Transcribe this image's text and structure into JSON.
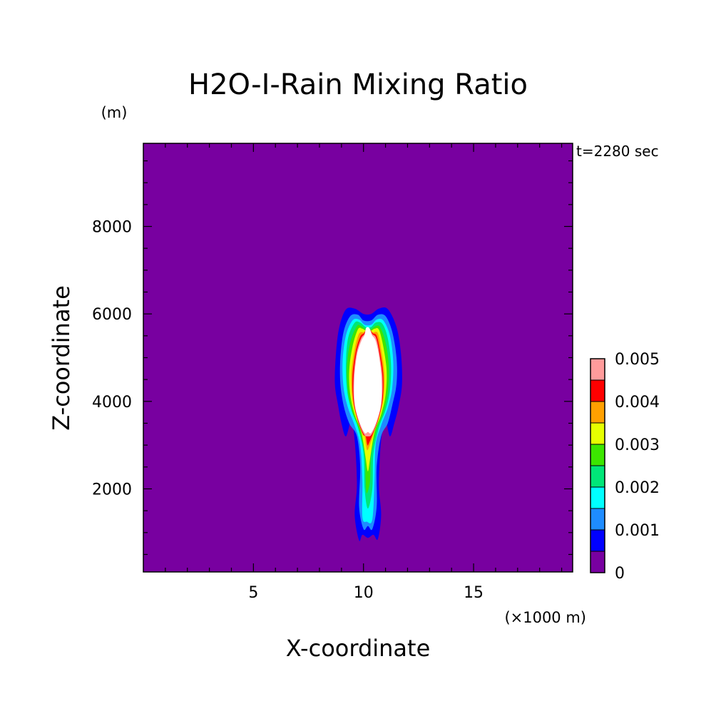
{
  "chart_data": {
    "type": "heatmap",
    "title": "H2O-I-Rain Mixing Ratio",
    "y_unit": "(m)",
    "time_label": "t=2280 sec",
    "xlabel": "X-coordinate",
    "x_unit": "(×1000 m)",
    "ylabel": "Z-coordinate",
    "xlim": [
      0,
      19.5
    ],
    "ylim": [
      100,
      9900
    ],
    "x_ticks": [
      {
        "value": 5,
        "label": "5"
      },
      {
        "value": 10,
        "label": "10"
      },
      {
        "value": 15,
        "label": "15"
      }
    ],
    "y_ticks": [
      {
        "value": 2000,
        "label": "2000"
      },
      {
        "value": 4000,
        "label": "4000"
      },
      {
        "value": 6000,
        "label": "6000"
      },
      {
        "value": 8000,
        "label": "8000"
      }
    ],
    "background_color": "#7800a0",
    "max_color": "#ffffff",
    "colorbar": {
      "levels": [
        0,
        0.0005,
        0.001,
        0.0015,
        0.002,
        0.0025,
        0.003,
        0.0035,
        0.004,
        0.0045,
        0.005
      ],
      "colors": [
        "#7800a0",
        "#0000ff",
        "#1e8cff",
        "#00ffff",
        "#00e678",
        "#3ce600",
        "#e6ff00",
        "#ffa000",
        "#ff0000",
        "#ff9b9b"
      ],
      "labels": [
        {
          "value": 0,
          "label": "0"
        },
        {
          "value": 0.001,
          "label": "0.001"
        },
        {
          "value": 0.002,
          "label": "0.002"
        },
        {
          "value": 0.003,
          "label": "0.003"
        },
        {
          "value": 0.004,
          "label": "0.004"
        },
        {
          "value": 0.005,
          "label": "0.005"
        }
      ]
    },
    "contours": [
      {
        "level": 0.0005,
        "color": "#0000ff",
        "points": [
          [
            9.2,
            6100
          ],
          [
            9.6,
            6120
          ],
          [
            10.0,
            6000
          ],
          [
            10.35,
            6000
          ],
          [
            10.7,
            6120
          ],
          [
            11.1,
            6110
          ],
          [
            11.5,
            5700
          ],
          [
            11.7,
            5100
          ],
          [
            11.75,
            4400
          ],
          [
            11.6,
            3900
          ],
          [
            11.4,
            3500
          ],
          [
            11.2,
            3200
          ],
          [
            11.0,
            3550
          ],
          [
            10.8,
            3100
          ],
          [
            10.7,
            2100
          ],
          [
            10.8,
            1400
          ],
          [
            10.65,
            850
          ],
          [
            10.45,
            950
          ],
          [
            10.2,
            880
          ],
          [
            9.95,
            950
          ],
          [
            9.8,
            820
          ],
          [
            9.6,
            1400
          ],
          [
            9.7,
            2100
          ],
          [
            9.6,
            3100
          ],
          [
            9.45,
            3550
          ],
          [
            9.2,
            3200
          ],
          [
            9.0,
            3500
          ],
          [
            8.85,
            3900
          ],
          [
            8.7,
            4400
          ],
          [
            8.75,
            5100
          ],
          [
            8.9,
            5700
          ]
        ]
      },
      {
        "level": 0.001,
        "color": "#1e8cff",
        "points": [
          [
            9.4,
            5950
          ],
          [
            9.75,
            5980
          ],
          [
            10.0,
            5850
          ],
          [
            10.35,
            5850
          ],
          [
            10.65,
            5980
          ],
          [
            11.0,
            5950
          ],
          [
            11.3,
            5600
          ],
          [
            11.5,
            5000
          ],
          [
            11.5,
            4400
          ],
          [
            11.3,
            3900
          ],
          [
            11.1,
            3500
          ],
          [
            10.8,
            3200
          ],
          [
            10.6,
            2500
          ],
          [
            10.6,
            1600
          ],
          [
            10.4,
            1080
          ],
          [
            10.2,
            1150
          ],
          [
            10.0,
            1080
          ],
          [
            9.8,
            1600
          ],
          [
            9.85,
            2500
          ],
          [
            9.7,
            3200
          ],
          [
            9.35,
            3500
          ],
          [
            9.1,
            3900
          ],
          [
            8.95,
            4400
          ],
          [
            8.95,
            5000
          ],
          [
            9.1,
            5600
          ]
        ]
      },
      {
        "level": 0.0015,
        "color": "#00ffff",
        "points": [
          [
            9.5,
            5850
          ],
          [
            9.8,
            5870
          ],
          [
            10.05,
            5750
          ],
          [
            10.35,
            5750
          ],
          [
            10.6,
            5870
          ],
          [
            10.9,
            5850
          ],
          [
            11.2,
            5500
          ],
          [
            11.35,
            4900
          ],
          [
            11.3,
            4300
          ],
          [
            11.1,
            3850
          ],
          [
            10.8,
            3450
          ],
          [
            10.55,
            3000
          ],
          [
            10.5,
            2200
          ],
          [
            10.4,
            1300
          ],
          [
            10.15,
            1250
          ],
          [
            9.95,
            1350
          ],
          [
            9.95,
            2200
          ],
          [
            9.85,
            3000
          ],
          [
            9.6,
            3450
          ],
          [
            9.3,
            3850
          ],
          [
            9.1,
            4300
          ],
          [
            9.05,
            4900
          ],
          [
            9.2,
            5500
          ]
        ]
      },
      {
        "level": 0.002,
        "color": "#00e678",
        "points": [
          [
            9.6,
            5800
          ],
          [
            9.85,
            5800
          ],
          [
            10.1,
            5700
          ],
          [
            10.35,
            5700
          ],
          [
            10.55,
            5800
          ],
          [
            10.85,
            5780
          ],
          [
            11.1,
            5450
          ],
          [
            11.25,
            4850
          ],
          [
            11.2,
            4250
          ],
          [
            11.0,
            3800
          ],
          [
            10.7,
            3400
          ],
          [
            10.45,
            2800
          ],
          [
            10.4,
            2000
          ],
          [
            10.2,
            1550
          ],
          [
            10.05,
            2000
          ],
          [
            10.0,
            2800
          ],
          [
            9.75,
            3400
          ],
          [
            9.45,
            3800
          ],
          [
            9.25,
            4250
          ],
          [
            9.2,
            4850
          ],
          [
            9.3,
            5450
          ]
        ]
      },
      {
        "level": 0.0025,
        "color": "#3ce600",
        "points": [
          [
            9.7,
            5720
          ],
          [
            9.9,
            5720
          ],
          [
            10.1,
            5650
          ],
          [
            10.35,
            5650
          ],
          [
            10.55,
            5720
          ],
          [
            10.75,
            5700
          ],
          [
            11.0,
            5350
          ],
          [
            11.15,
            4800
          ],
          [
            11.1,
            4200
          ],
          [
            10.9,
            3750
          ],
          [
            10.6,
            3350
          ],
          [
            10.35,
            2800
          ],
          [
            10.3,
            2200
          ],
          [
            10.15,
            1900
          ],
          [
            10.1,
            2200
          ],
          [
            10.05,
            2800
          ],
          [
            9.8,
            3350
          ],
          [
            9.5,
            3750
          ],
          [
            9.3,
            4200
          ],
          [
            9.25,
            4800
          ],
          [
            9.4,
            5350
          ]
        ]
      },
      {
        "level": 0.003,
        "color": "#e6ff00",
        "points": [
          [
            9.75,
            5650
          ],
          [
            9.95,
            5660
          ],
          [
            10.1,
            5620
          ],
          [
            10.35,
            5620
          ],
          [
            10.5,
            5660
          ],
          [
            10.7,
            5640
          ],
          [
            10.9,
            5250
          ],
          [
            11.05,
            4700
          ],
          [
            11.0,
            4150
          ],
          [
            10.8,
            3700
          ],
          [
            10.5,
            3300
          ],
          [
            10.3,
            2700
          ],
          [
            10.2,
            2400
          ],
          [
            10.1,
            2700
          ],
          [
            9.9,
            3300
          ],
          [
            9.6,
            3700
          ],
          [
            9.4,
            4150
          ],
          [
            9.35,
            4700
          ],
          [
            9.5,
            5250
          ]
        ]
      },
      {
        "level": 0.0035,
        "color": "#ffa000",
        "points": [
          [
            9.8,
            5550
          ],
          [
            10.0,
            5580
          ],
          [
            10.12,
            5600
          ],
          [
            10.32,
            5600
          ],
          [
            10.45,
            5580
          ],
          [
            10.65,
            5560
          ],
          [
            10.8,
            5200
          ],
          [
            10.95,
            4650
          ],
          [
            10.92,
            4100
          ],
          [
            10.72,
            3650
          ],
          [
            10.45,
            3250
          ],
          [
            10.25,
            2950
          ],
          [
            10.15,
            2900
          ],
          [
            10.05,
            3200
          ],
          [
            9.95,
            3250
          ],
          [
            9.68,
            3650
          ],
          [
            9.48,
            4100
          ],
          [
            9.45,
            4650
          ],
          [
            9.6,
            5200
          ]
        ]
      },
      {
        "level": 0.004,
        "color": "#ff0000",
        "points": [
          [
            9.85,
            5480
          ],
          [
            10.02,
            5560
          ],
          [
            10.12,
            5640
          ],
          [
            10.3,
            5640
          ],
          [
            10.42,
            5560
          ],
          [
            10.6,
            5500
          ],
          [
            10.75,
            5150
          ],
          [
            10.9,
            4600
          ],
          [
            10.87,
            4050
          ],
          [
            10.68,
            3600
          ],
          [
            10.42,
            3250
          ],
          [
            10.25,
            3050
          ],
          [
            10.18,
            3000
          ],
          [
            10.1,
            3200
          ],
          [
            9.98,
            3250
          ],
          [
            9.72,
            3600
          ],
          [
            9.53,
            4050
          ],
          [
            9.5,
            4600
          ],
          [
            9.65,
            5150
          ]
        ]
      },
      {
        "level": 0.0045,
        "color": "#ff9b9b",
        "points": [
          [
            9.88,
            5430
          ],
          [
            10.04,
            5540
          ],
          [
            10.12,
            5660
          ],
          [
            10.28,
            5660
          ],
          [
            10.4,
            5540
          ],
          [
            10.57,
            5450
          ],
          [
            10.72,
            5100
          ],
          [
            10.86,
            4550
          ],
          [
            10.83,
            4000
          ],
          [
            10.64,
            3570
          ],
          [
            10.38,
            3250
          ],
          [
            10.2,
            3200
          ],
          [
            10.02,
            3250
          ],
          [
            9.76,
            3570
          ],
          [
            9.57,
            4000
          ],
          [
            9.55,
            4550
          ],
          [
            9.68,
            5100
          ]
        ]
      },
      {
        "level": 0.005,
        "color": "#ffffff",
        "points": [
          [
            9.9,
            5380
          ],
          [
            10.05,
            5520
          ],
          [
            10.12,
            5680
          ],
          [
            10.26,
            5680
          ],
          [
            10.38,
            5520
          ],
          [
            10.54,
            5400
          ],
          [
            10.7,
            5050
          ],
          [
            10.82,
            4500
          ],
          [
            10.8,
            3950
          ],
          [
            10.6,
            3550
          ],
          [
            10.35,
            3280
          ],
          [
            10.2,
            3300
          ],
          [
            10.05,
            3280
          ],
          [
            9.8,
            3550
          ],
          [
            9.6,
            3950
          ],
          [
            9.58,
            4500
          ],
          [
            9.7,
            5050
          ]
        ]
      }
    ]
  }
}
